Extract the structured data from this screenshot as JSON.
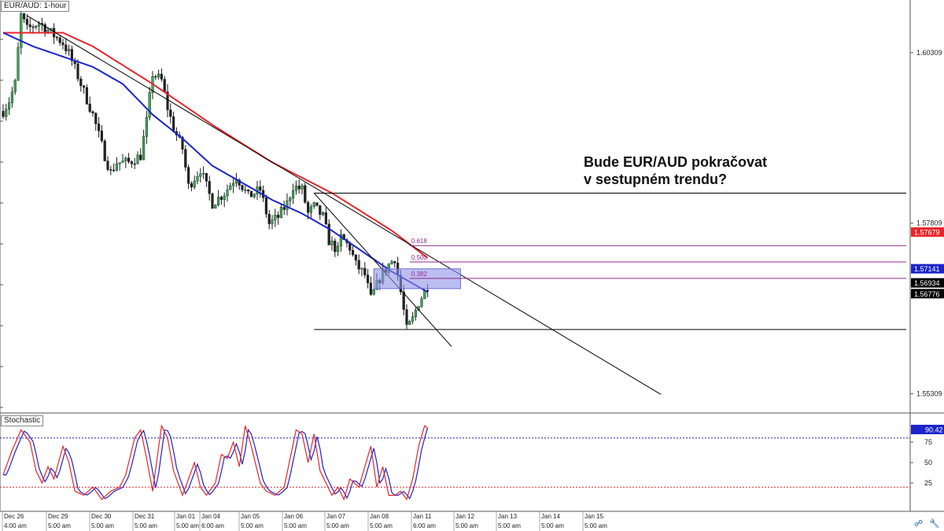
{
  "chart_data": {
    "type": "candlestick",
    "symbol_label": "EUR/AUD: 1-hour",
    "price_axis": {
      "ticks": [
        "1.60309",
        "1.57809",
        "1.55309"
      ],
      "ylim": [
        1.5505,
        1.6108
      ]
    },
    "badges": [
      {
        "text": "1.57679",
        "value": 1.57679,
        "color": "#e8262a"
      },
      {
        "text": "1.57141",
        "value": 1.57141,
        "color": "#1b25c9"
      },
      {
        "text": "1.56934",
        "value": 1.56934,
        "color": "#000000"
      },
      {
        "text": "1.56776",
        "value": 1.56776,
        "color": "#000000"
      }
    ],
    "x_labels": [
      "Dec 26",
      "Dec 29",
      "Dec 30",
      "Dec 31",
      "Jan 01",
      "Jan 04",
      "Jan 05",
      "Jan 06",
      "Jan 07",
      "Jan 08",
      "Jan 11",
      "Jan 12",
      "Jan 13",
      "Jan 14",
      "Jan 15"
    ],
    "time_labels": [
      "4:00 am",
      "5:00 am",
      "5:00 am",
      "5:00 am",
      "5:00 am",
      "6:00 am",
      "5:00 am",
      "5:00 am",
      "5:00 am",
      "5:00 am",
      "6:00 am",
      "5:00 am",
      "5:00 am",
      "5:00 am",
      "5:00 am"
    ],
    "path_knots": [
      [
        0,
        1.5945
      ],
      [
        2,
        1.596
      ],
      [
        4,
        1.5985
      ],
      [
        6,
        1.6085
      ],
      [
        8,
        1.6065
      ],
      [
        12,
        1.6075
      ],
      [
        16,
        1.606
      ],
      [
        20,
        1.6045
      ],
      [
        22,
        1.603
      ],
      [
        26,
        1.5985
      ],
      [
        30,
        1.594
      ],
      [
        34,
        1.588
      ],
      [
        36,
        1.5855
      ],
      [
        38,
        1.587
      ],
      [
        42,
        1.587
      ],
      [
        46,
        1.588
      ],
      [
        48,
        1.593
      ],
      [
        50,
        1.6
      ],
      [
        53,
        1.599
      ],
      [
        55,
        1.595
      ],
      [
        57,
        1.592
      ],
      [
        60,
        1.589
      ],
      [
        62,
        1.5835
      ],
      [
        66,
        1.586
      ],
      [
        70,
        1.581
      ],
      [
        74,
        1.5825
      ],
      [
        78,
        1.585
      ],
      [
        82,
        1.582
      ],
      [
        86,
        1.583
      ],
      [
        89,
        1.578
      ],
      [
        92,
        1.579
      ],
      [
        95,
        1.581
      ],
      [
        97,
        1.5835
      ],
      [
        100,
        1.583
      ],
      [
        102,
        1.5795
      ],
      [
        104,
        1.5805
      ],
      [
        107,
        1.579
      ],
      [
        109,
        1.5755
      ],
      [
        112,
        1.574
      ],
      [
        113,
        1.576
      ],
      [
        116,
        1.5745
      ],
      [
        118,
        1.572
      ],
      [
        120,
        1.571
      ],
      [
        121,
        1.5705
      ],
      [
        123,
        1.567
      ],
      [
        126,
        1.57
      ],
      [
        129,
        1.572
      ],
      [
        131,
        1.573
      ],
      [
        133,
        1.568
      ],
      [
        135,
        1.5625
      ],
      [
        137,
        1.564
      ],
      [
        139,
        1.5665
      ],
      [
        141,
        1.568
      ],
      [
        142,
        1.569
      ]
    ],
    "bar_count": 143,
    "sma_red": {
      "name": "",
      "color": "#e8262a",
      "knots": [
        [
          0,
          1.606
        ],
        [
          20,
          1.606
        ],
        [
          30,
          1.604
        ],
        [
          50,
          1.5985
        ],
        [
          70,
          1.5925
        ],
        [
          90,
          1.587
        ],
        [
          110,
          1.5825
        ],
        [
          130,
          1.577
        ],
        [
          142,
          1.573
        ]
      ]
    },
    "sma_blue": {
      "name": "",
      "color": "#1b25c9",
      "knots": [
        [
          0,
          1.606
        ],
        [
          10,
          1.604
        ],
        [
          20,
          1.6025
        ],
        [
          30,
          1.601
        ],
        [
          40,
          1.5985
        ],
        [
          50,
          1.594
        ],
        [
          60,
          1.5905
        ],
        [
          70,
          1.5865
        ],
        [
          80,
          1.584
        ],
        [
          90,
          1.5815
        ],
        [
          100,
          1.5795
        ],
        [
          110,
          1.577
        ],
        [
          120,
          1.574
        ],
        [
          130,
          1.571
        ],
        [
          142,
          1.568
        ]
      ]
    },
    "trendlines": [
      {
        "from": [
          8,
          1.6085
        ],
        "to": [
          220,
          1.553
        ],
        "color": "#000000"
      },
      {
        "from": [
          104,
          1.5825
        ],
        "to": [
          150,
          1.56
        ],
        "color": "#000000"
      }
    ],
    "horizontal_lines": [
      {
        "value": 1.5825,
        "x_from": 104,
        "color": "#000000"
      },
      {
        "value": 1.5625,
        "x_from": 104,
        "color": "#000000"
      }
    ],
    "fibonacci": {
      "levels": [
        {
          "label": "0.618",
          "value": 1.5748
        },
        {
          "label": "0.500",
          "value": 1.5724
        },
        {
          "label": "0.382",
          "value": 1.57
        }
      ],
      "x_from": 136,
      "color": "#8e2a8e",
      "zone": {
        "from": 1.5685,
        "to": 1.5714,
        "x_from": 124,
        "x_to": 153,
        "color": "#8f93e8"
      }
    },
    "annotation": {
      "line1": "Bude EUR/AUD pokračovat",
      "line2": "v sestupném trendu?"
    },
    "stochastic": {
      "label": "Stochastic",
      "ylim": [
        0,
        100
      ],
      "ticks": [
        "75",
        "50",
        "25"
      ],
      "overbought": 80,
      "oversold": 20,
      "value_badge": "90.42",
      "k_color": "#e8262a",
      "d_color": "#1b25c9",
      "k_knots": [
        [
          0,
          35
        ],
        [
          3,
          65
        ],
        [
          6,
          90
        ],
        [
          9,
          75
        ],
        [
          11,
          40
        ],
        [
          13,
          25
        ],
        [
          15,
          45
        ],
        [
          17,
          30
        ],
        [
          20,
          70
        ],
        [
          22,
          50
        ],
        [
          24,
          15
        ],
        [
          27,
          10
        ],
        [
          30,
          20
        ],
        [
          33,
          5
        ],
        [
          36,
          15
        ],
        [
          39,
          20
        ],
        [
          41,
          35
        ],
        [
          44,
          80
        ],
        [
          46,
          90
        ],
        [
          48,
          55
        ],
        [
          50,
          15
        ],
        [
          53,
          95
        ],
        [
          55,
          80
        ],
        [
          57,
          40
        ],
        [
          60,
          10
        ],
        [
          62,
          30
        ],
        [
          64,
          50
        ],
        [
          66,
          20
        ],
        [
          68,
          10
        ],
        [
          71,
          25
        ],
        [
          73,
          60
        ],
        [
          75,
          55
        ],
        [
          77,
          75
        ],
        [
          79,
          45
        ],
        [
          81,
          95
        ],
        [
          83,
          70
        ],
        [
          86,
          25
        ],
        [
          88,
          15
        ],
        [
          91,
          10
        ],
        [
          94,
          20
        ],
        [
          96,
          55
        ],
        [
          98,
          90
        ],
        [
          100,
          85
        ],
        [
          102,
          50
        ],
        [
          104,
          85
        ],
        [
          106,
          40
        ],
        [
          108,
          25
        ],
        [
          110,
          10
        ],
        [
          112,
          20
        ],
        [
          114,
          5
        ],
        [
          116,
          30
        ],
        [
          119,
          20
        ],
        [
          121,
          45
        ],
        [
          123,
          70
        ],
        [
          125,
          20
        ],
        [
          127,
          45
        ],
        [
          129,
          10
        ],
        [
          131,
          10
        ],
        [
          133,
          15
        ],
        [
          135,
          5
        ],
        [
          137,
          30
        ],
        [
          139,
          70
        ],
        [
          141,
          95
        ],
        [
          142,
          92
        ]
      ]
    }
  },
  "toolbar_icons": [
    "link-icon",
    "wrench-icon"
  ]
}
